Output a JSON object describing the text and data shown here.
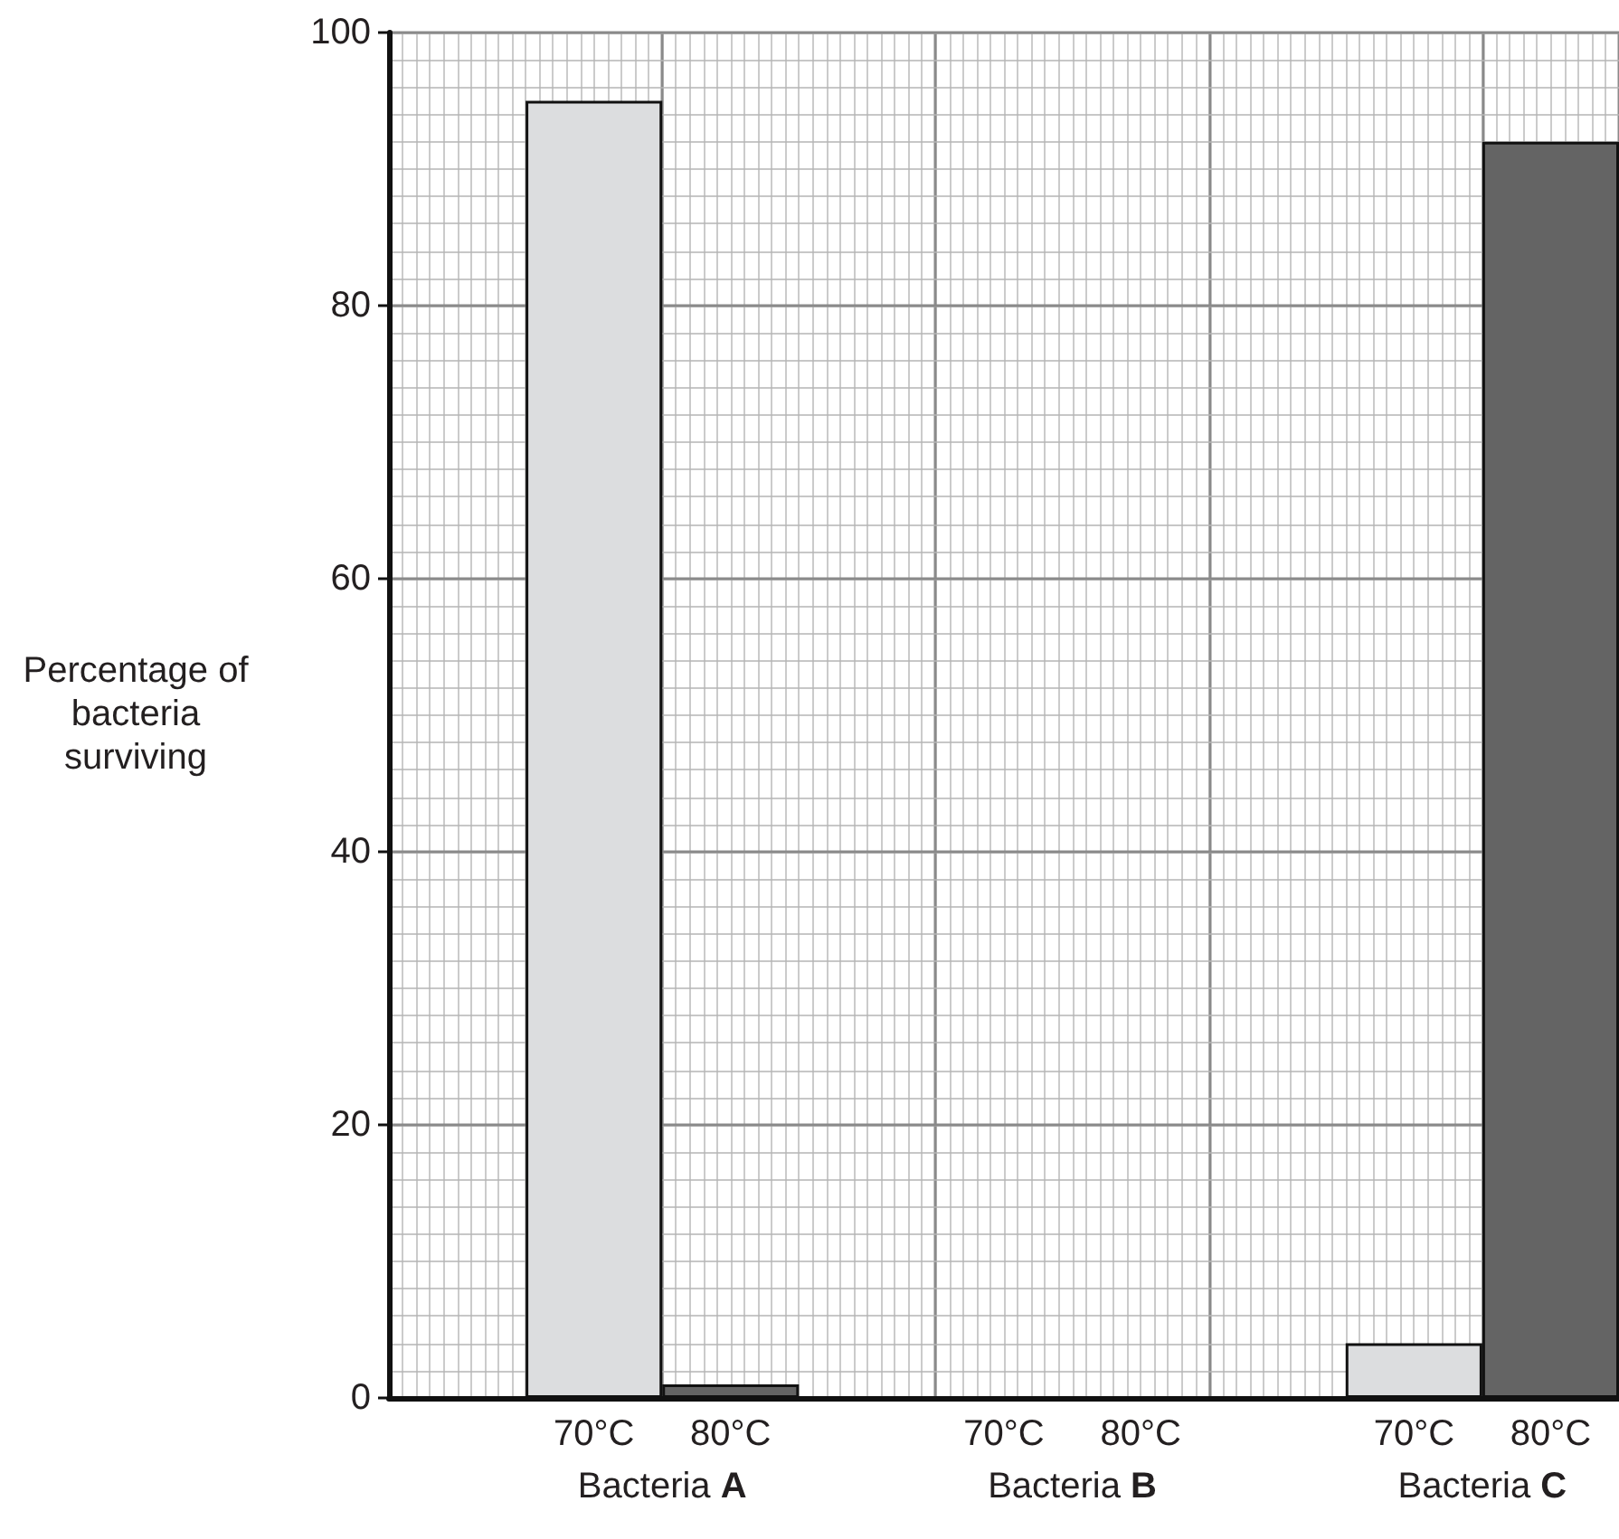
{
  "chart_data": {
    "type": "bar",
    "ylabel": "Percentage of bacteria surviving",
    "categories": [
      null,
      "70°C",
      "80°C",
      null,
      "70°C",
      "80°C",
      null,
      "70°C",
      "80°C"
    ],
    "values": [
      null,
      95,
      1,
      null,
      null,
      null,
      null,
      4,
      92
    ],
    "colors": [
      null,
      "#dcdddf",
      "#646464",
      null,
      null,
      null,
      null,
      "#dcdddf",
      "#646464"
    ],
    "ylim": [
      0,
      100
    ],
    "yticks": [
      0,
      20,
      40,
      60,
      80,
      100
    ],
    "annotations": [
      "Bacteria A",
      "Bacteria B",
      "Bacteria C"
    ],
    "grid": true
  }
}
